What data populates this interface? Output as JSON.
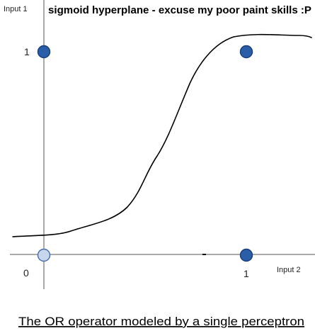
{
  "diagram": {
    "title": "sigmoid hyperplane - excuse my poor paint skills :P",
    "y_axis_label": "Input 1",
    "x_axis_label": "Input 2",
    "origin_tick": "0",
    "y_tick": "1",
    "x_tick": "1",
    "caption": "The OR operator modeled by a single perceptron",
    "colors": {
      "point_fill": "#2a5ea8",
      "point_stroke": "#1a3f78",
      "origin_point_fill": "#c6d6ec",
      "origin_point_stroke": "#4a6fa8",
      "axis": "#555555",
      "curve": "#000000"
    }
  }
}
